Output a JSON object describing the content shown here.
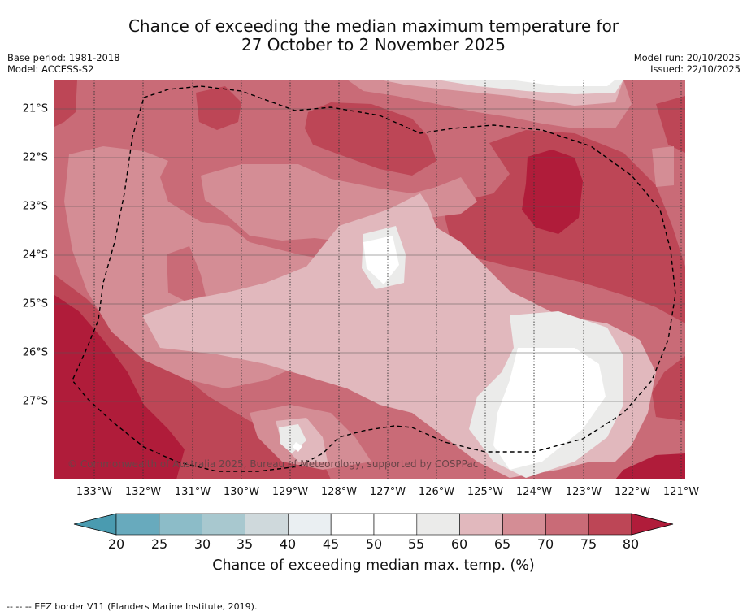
{
  "title": {
    "line1": "Chance of exceeding the median maximum temperature for",
    "line2": "27 October to 2 November 2025"
  },
  "meta": {
    "base_period": "Base period: 1981-2018",
    "model": "Model: ACCESS-S2",
    "model_run": "Model run: 20/10/2025",
    "issued": "Issued: 22/10/2025"
  },
  "map": {
    "copyright": "© Commonwealth of Australia 2025, Bureau of Meteorology, supported by COSPPac",
    "lat_labels": [
      "21°S",
      "22°S",
      "23°S",
      "24°S",
      "25°S",
      "26°S",
      "27°S"
    ],
    "lon_labels": [
      "133°W",
      "132°W",
      "131°W",
      "130°W",
      "129°W",
      "128°W",
      "127°W",
      "126°W",
      "125°W",
      "124°W",
      "123°W",
      "122°W",
      "121°W"
    ]
  },
  "colorbar": {
    "ticks": [
      "20",
      "25",
      "30",
      "35",
      "40",
      "45",
      "50",
      "55",
      "60",
      "65",
      "70",
      "75",
      "80"
    ],
    "colors": [
      "#68aabd",
      "#8cbcc8",
      "#a8c8cf",
      "#cfd9dc",
      "#eaeff2",
      "#ffffff",
      "#ffffff",
      "#ebebea",
      "#e1b8bd",
      "#d48d95",
      "#c96b77",
      "#bd4656"
    ],
    "under_color": "#4a9bb0",
    "over_color": "#b01c3a",
    "label": "Chance of exceeding median max. temp. (%)"
  },
  "footer": {
    "legend": "--  --  -- EEZ border V11 (Flanders Marine Institute, 2019)."
  }
}
